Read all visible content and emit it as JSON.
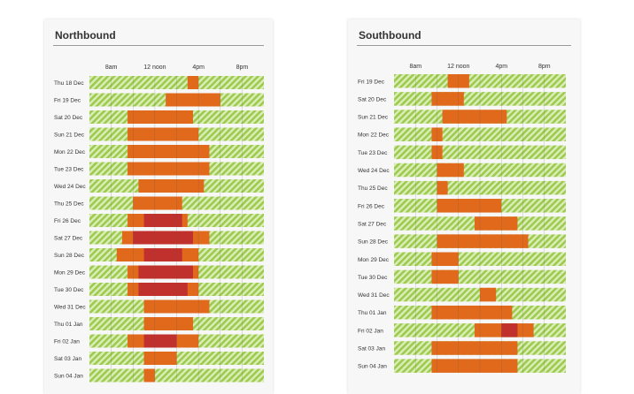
{
  "colors": {
    "stripe_light": "#dcedb8",
    "stripe_dark": "#9ccb4f",
    "busy": "#e0691c",
    "very_busy": "#c0312d",
    "divider": "#555555",
    "text": "#333333"
  },
  "chart_data": [
    {
      "type": "timeline",
      "title": "Northbound",
      "x_ticks": [
        {
          "label": "8am",
          "hour": 8
        },
        {
          "label": "12 noon",
          "hour": 12
        },
        {
          "label": "4pm",
          "hour": 16
        },
        {
          "label": "8pm",
          "hour": 20
        }
      ],
      "x_range_hours": [
        6,
        22
      ],
      "rows": [
        {
          "date": "Thu 18 Dec",
          "busy": [
            [
              15,
              16
            ]
          ],
          "very_busy": []
        },
        {
          "date": "Fri 19 Dec",
          "busy": [
            [
              13,
              18
            ]
          ],
          "very_busy": []
        },
        {
          "date": "Sat 20 Dec",
          "busy": [
            [
              9.5,
              15.5
            ]
          ],
          "very_busy": []
        },
        {
          "date": "Sun 21 Dec",
          "busy": [
            [
              9.5,
              16
            ]
          ],
          "very_busy": []
        },
        {
          "date": "Mon 22 Dec",
          "busy": [
            [
              9.5,
              17
            ]
          ],
          "very_busy": []
        },
        {
          "date": "Tue 23 Dec",
          "busy": [
            [
              9.5,
              17
            ]
          ],
          "very_busy": []
        },
        {
          "date": "Wed 24 Dec",
          "busy": [
            [
              10.5,
              16.5
            ]
          ],
          "very_busy": []
        },
        {
          "date": "Thu 25 Dec",
          "busy": [
            [
              10,
              14.5
            ]
          ],
          "very_busy": []
        },
        {
          "date": "Fri 26 Dec",
          "busy": [
            [
              9.5,
              15
            ]
          ],
          "very_busy": [
            [
              11,
              14.5
            ]
          ]
        },
        {
          "date": "Sat 27 Dec",
          "busy": [
            [
              9,
              17
            ]
          ],
          "very_busy": [
            [
              10,
              15.5
            ]
          ]
        },
        {
          "date": "Sun 28 Dec",
          "busy": [
            [
              8.5,
              16
            ]
          ],
          "very_busy": [
            [
              11,
              14.5
            ]
          ]
        },
        {
          "date": "Mon 29 Dec",
          "busy": [
            [
              9.5,
              16
            ]
          ],
          "very_busy": [
            [
              10.5,
              15.5
            ]
          ]
        },
        {
          "date": "Tue 30 Dec",
          "busy": [
            [
              9.5,
              16
            ]
          ],
          "very_busy": [
            [
              10.5,
              15
            ]
          ]
        },
        {
          "date": "Wed 31 Dec",
          "busy": [
            [
              11,
              17
            ]
          ],
          "very_busy": []
        },
        {
          "date": "Thu 01 Jan",
          "busy": [
            [
              11,
              15.5
            ]
          ],
          "very_busy": []
        },
        {
          "date": "Fri 02 Jan",
          "busy": [
            [
              9.5,
              16
            ]
          ],
          "very_busy": [
            [
              11,
              14
            ]
          ]
        },
        {
          "date": "Sat 03 Jan",
          "busy": [
            [
              11,
              14
            ]
          ],
          "very_busy": []
        },
        {
          "date": "Sun 04 Jan",
          "busy": [
            [
              11,
              12
            ]
          ],
          "very_busy": []
        }
      ]
    },
    {
      "type": "timeline",
      "title": "Southbound",
      "x_ticks": [
        {
          "label": "8am",
          "hour": 8
        },
        {
          "label": "12 noon",
          "hour": 12
        },
        {
          "label": "4pm",
          "hour": 16
        },
        {
          "label": "8pm",
          "hour": 20
        }
      ],
      "x_range_hours": [
        6,
        22
      ],
      "rows": [
        {
          "date": "Fri 19 Dec",
          "busy": [
            [
              11,
              13
            ]
          ],
          "very_busy": []
        },
        {
          "date": "Sat 20 Dec",
          "busy": [
            [
              9.5,
              12.5
            ]
          ],
          "very_busy": []
        },
        {
          "date": "Sun 21 Dec",
          "busy": [
            [
              10.5,
              16.5
            ]
          ],
          "very_busy": []
        },
        {
          "date": "Mon 22 Dec",
          "busy": [
            [
              9.5,
              10.5
            ]
          ],
          "very_busy": []
        },
        {
          "date": "Tue 23 Dec",
          "busy": [
            [
              9.5,
              10.5
            ]
          ],
          "very_busy": []
        },
        {
          "date": "Wed 24 Dec",
          "busy": [
            [
              10,
              12.5
            ]
          ],
          "very_busy": []
        },
        {
          "date": "Thu 25 Dec",
          "busy": [
            [
              10,
              11
            ]
          ],
          "very_busy": []
        },
        {
          "date": "Fri 26 Dec",
          "busy": [
            [
              10,
              16
            ]
          ],
          "very_busy": []
        },
        {
          "date": "Sat 27 Dec",
          "busy": [
            [
              13.5,
              17.5
            ]
          ],
          "very_busy": []
        },
        {
          "date": "Sun 28 Dec",
          "busy": [
            [
              10,
              18.5
            ]
          ],
          "very_busy": []
        },
        {
          "date": "Mon 29 Dec",
          "busy": [
            [
              9.5,
              12
            ]
          ],
          "very_busy": []
        },
        {
          "date": "Tue 30 Dec",
          "busy": [
            [
              9.5,
              12
            ]
          ],
          "very_busy": []
        },
        {
          "date": "Wed 31 Dec",
          "busy": [
            [
              14,
              15.5
            ]
          ],
          "very_busy": []
        },
        {
          "date": "Thu 01 Jan",
          "busy": [
            [
              9.5,
              17
            ]
          ],
          "very_busy": []
        },
        {
          "date": "Fri 02 Jan",
          "busy": [
            [
              13.5,
              19
            ]
          ],
          "very_busy": [
            [
              16,
              17.5
            ]
          ]
        },
        {
          "date": "Sat 03 Jan",
          "busy": [
            [
              9.5,
              17.5
            ]
          ],
          "very_busy": []
        },
        {
          "date": "Sun 04 Jan",
          "busy": [
            [
              9.5,
              17.5
            ]
          ],
          "very_busy": []
        }
      ]
    }
  ]
}
